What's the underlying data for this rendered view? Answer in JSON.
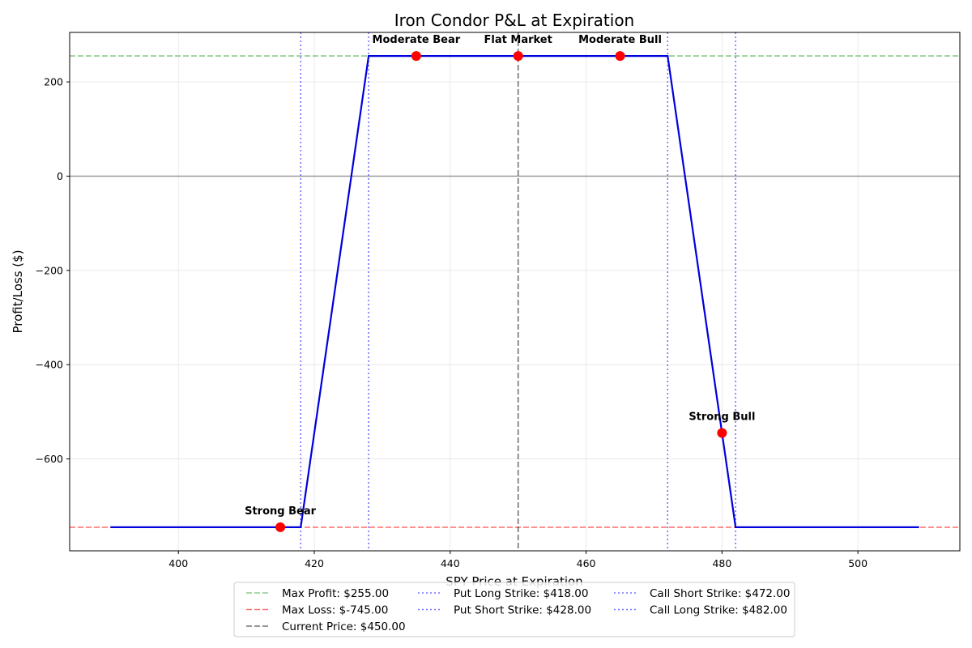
{
  "chart_data": {
    "type": "line",
    "title": "Iron Condor P&L at Expiration",
    "xlabel": "SPY Price at Expiration",
    "ylabel": "Profit/Loss ($)",
    "xlim": [
      384,
      515
    ],
    "ylim": [
      -795,
      305
    ],
    "x_ticks": [
      400,
      420,
      440,
      460,
      480,
      500
    ],
    "y_ticks": [
      200,
      0,
      -200,
      -400,
      -600
    ],
    "y_tick_labels": [
      "200",
      "0",
      "−200",
      "−400",
      "−600"
    ],
    "grid": true,
    "legend_position": "bottom-center",
    "series": [
      {
        "points": [
          {
            "x": 390,
            "y": -745
          },
          {
            "x": 418,
            "y": -745
          },
          {
            "x": 428,
            "y": 255
          },
          {
            "x": 472,
            "y": 255
          },
          {
            "x": 482,
            "y": -745
          },
          {
            "x": 509,
            "y": -745
          }
        ],
        "color": "#0000dd"
      }
    ],
    "reference_lines": [
      {
        "orientation": "horizontal",
        "value": 255,
        "label": "Max Profit: $255.00",
        "color": "#2ca02c",
        "style": "dashed"
      },
      {
        "orientation": "horizontal",
        "value": -745,
        "label": "Max Loss: $-745.00",
        "color": "#ff0000",
        "style": "dashed"
      },
      {
        "orientation": "vertical",
        "value": 450,
        "label": "Current Price: $450.00",
        "color": "#000000",
        "style": "dashed"
      },
      {
        "orientation": "vertical",
        "value": 418,
        "label": "Put Long Strike: $418.00",
        "color": "#0000ff",
        "style": "dotted"
      },
      {
        "orientation": "vertical",
        "value": 428,
        "label": "Put Short Strike: $428.00",
        "color": "#0000ff",
        "style": "dotted"
      },
      {
        "orientation": "vertical",
        "value": 472,
        "label": "Call Short Strike: $472.00",
        "color": "#0000ff",
        "style": "dotted"
      },
      {
        "orientation": "vertical",
        "value": 482,
        "label": "Call Long Strike: $482.00",
        "color": "#0000ff",
        "style": "dotted"
      }
    ],
    "zero_line": 0,
    "scenarios": [
      {
        "label": "Strong Bear",
        "x": 415,
        "y": -745
      },
      {
        "label": "Moderate Bear",
        "x": 435,
        "y": 255
      },
      {
        "label": "Flat Market",
        "x": 450,
        "y": 255
      },
      {
        "label": "Moderate Bull",
        "x": 465,
        "y": 255
      },
      {
        "label": "Strong Bull",
        "x": 480,
        "y": -545
      }
    ],
    "scenario_color": "#ff0000",
    "legend_columns": [
      [
        "Max Profit: $255.00",
        "Max Loss: $-745.00",
        "Current Price: $450.00"
      ],
      [
        "Put Long Strike: $418.00",
        "Put Short Strike: $428.00"
      ],
      [
        "Call Short Strike: $472.00",
        "Call Long Strike: $482.00"
      ]
    ]
  }
}
